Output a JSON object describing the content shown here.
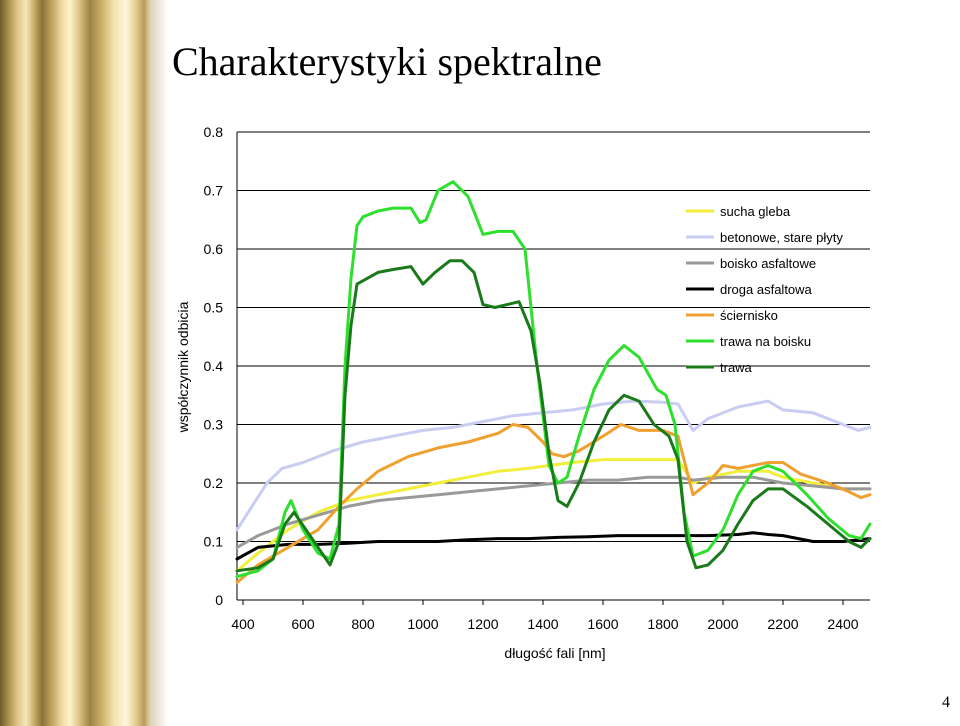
{
  "slide": {
    "title": "Charakterystyki spektralne",
    "number": "4"
  },
  "colors": {
    "background": "#ffffff",
    "band_dark": "#8a7439",
    "band_light": "#f5e7b8",
    "grid": "#000000"
  },
  "chart_data": {
    "type": "line",
    "xlabel": "długość fali [nm]",
    "ylabel": "współczynnik odbicia",
    "xlim": [
      380,
      2490
    ],
    "ylim": [
      0,
      0.8
    ],
    "x_ticks": [
      "400",
      "600",
      "800",
      "1000",
      "1200",
      "1400",
      "1600",
      "1800",
      "2000",
      "2200",
      "2400"
    ],
    "y_ticks": [
      "0",
      "0.1",
      "0.2",
      "0.3",
      "0.4",
      "0.5",
      "0.6",
      "0.7",
      "0.8"
    ],
    "grid": "horizontal",
    "legend_position": "top-right",
    "series": [
      {
        "name": "sucha gleba",
        "color": "#f2ee3a",
        "points": [
          [
            380,
            0.05
          ],
          [
            450,
            0.08
          ],
          [
            550,
            0.12
          ],
          [
            650,
            0.15
          ],
          [
            750,
            0.17
          ],
          [
            850,
            0.18
          ],
          [
            950,
            0.19
          ],
          [
            1050,
            0.2
          ],
          [
            1150,
            0.21
          ],
          [
            1250,
            0.22
          ],
          [
            1350,
            0.225
          ],
          [
            1420,
            0.23
          ],
          [
            1500,
            0.235
          ],
          [
            1600,
            0.24
          ],
          [
            1700,
            0.24
          ],
          [
            1800,
            0.24
          ],
          [
            1850,
            0.24
          ],
          [
            1900,
            0.2
          ],
          [
            1950,
            0.21
          ],
          [
            2050,
            0.22
          ],
          [
            2150,
            0.22
          ],
          [
            2200,
            0.21
          ],
          [
            2300,
            0.2
          ],
          [
            2400,
            0.19
          ],
          [
            2490,
            0.19
          ]
        ]
      },
      {
        "name": "betonowe, stare płyty",
        "color": "#c9cdf2",
        "points": [
          [
            380,
            0.12
          ],
          [
            430,
            0.16
          ],
          [
            480,
            0.2
          ],
          [
            530,
            0.225
          ],
          [
            600,
            0.235
          ],
          [
            700,
            0.255
          ],
          [
            800,
            0.27
          ],
          [
            900,
            0.28
          ],
          [
            1000,
            0.29
          ],
          [
            1100,
            0.295
          ],
          [
            1200,
            0.305
          ],
          [
            1300,
            0.315
          ],
          [
            1400,
            0.32
          ],
          [
            1500,
            0.325
          ],
          [
            1550,
            0.33
          ],
          [
            1600,
            0.335
          ],
          [
            1700,
            0.34
          ],
          [
            1800,
            0.338
          ],
          [
            1850,
            0.335
          ],
          [
            1900,
            0.29
          ],
          [
            1950,
            0.31
          ],
          [
            2050,
            0.33
          ],
          [
            2150,
            0.34
          ],
          [
            2200,
            0.325
          ],
          [
            2300,
            0.32
          ],
          [
            2400,
            0.3
          ],
          [
            2450,
            0.29
          ],
          [
            2490,
            0.295
          ]
        ]
      },
      {
        "name": "boisko asfaltowe",
        "color": "#999999",
        "points": [
          [
            380,
            0.09
          ],
          [
            450,
            0.11
          ],
          [
            550,
            0.13
          ],
          [
            650,
            0.145
          ],
          [
            750,
            0.16
          ],
          [
            850,
            0.17
          ],
          [
            950,
            0.175
          ],
          [
            1050,
            0.18
          ],
          [
            1150,
            0.185
          ],
          [
            1250,
            0.19
          ],
          [
            1350,
            0.195
          ],
          [
            1450,
            0.2
          ],
          [
            1550,
            0.205
          ],
          [
            1650,
            0.205
          ],
          [
            1750,
            0.21
          ],
          [
            1850,
            0.21
          ],
          [
            1900,
            0.205
          ],
          [
            2000,
            0.21
          ],
          [
            2100,
            0.21
          ],
          [
            2200,
            0.2
          ],
          [
            2300,
            0.195
          ],
          [
            2400,
            0.19
          ],
          [
            2490,
            0.19
          ]
        ]
      },
      {
        "name": "droga asfaltowa",
        "color": "#000000",
        "points": [
          [
            380,
            0.07
          ],
          [
            450,
            0.09
          ],
          [
            550,
            0.095
          ],
          [
            650,
            0.095
          ],
          [
            750,
            0.097
          ],
          [
            850,
            0.1
          ],
          [
            950,
            0.1
          ],
          [
            1050,
            0.1
          ],
          [
            1150,
            0.103
          ],
          [
            1250,
            0.105
          ],
          [
            1350,
            0.105
          ],
          [
            1450,
            0.107
          ],
          [
            1550,
            0.108
          ],
          [
            1650,
            0.11
          ],
          [
            1750,
            0.11
          ],
          [
            1850,
            0.11
          ],
          [
            1950,
            0.11
          ],
          [
            2050,
            0.112
          ],
          [
            2100,
            0.115
          ],
          [
            2150,
            0.112
          ],
          [
            2200,
            0.11
          ],
          [
            2300,
            0.1
          ],
          [
            2400,
            0.1
          ],
          [
            2490,
            0.105
          ]
        ]
      },
      {
        "name": "ściernisko",
        "color": "#f0a030",
        "points": [
          [
            380,
            0.03
          ],
          [
            450,
            0.06
          ],
          [
            550,
            0.09
          ],
          [
            650,
            0.12
          ],
          [
            720,
            0.16
          ],
          [
            780,
            0.19
          ],
          [
            850,
            0.22
          ],
          [
            950,
            0.245
          ],
          [
            1050,
            0.26
          ],
          [
            1150,
            0.27
          ],
          [
            1250,
            0.285
          ],
          [
            1300,
            0.3
          ],
          [
            1350,
            0.295
          ],
          [
            1400,
            0.27
          ],
          [
            1430,
            0.25
          ],
          [
            1470,
            0.245
          ],
          [
            1520,
            0.255
          ],
          [
            1600,
            0.28
          ],
          [
            1660,
            0.3
          ],
          [
            1720,
            0.29
          ],
          [
            1800,
            0.29
          ],
          [
            1850,
            0.28
          ],
          [
            1900,
            0.18
          ],
          [
            1950,
            0.2
          ],
          [
            2000,
            0.23
          ],
          [
            2050,
            0.225
          ],
          [
            2150,
            0.235
          ],
          [
            2200,
            0.235
          ],
          [
            2260,
            0.215
          ],
          [
            2350,
            0.2
          ],
          [
            2420,
            0.185
          ],
          [
            2460,
            0.175
          ],
          [
            2490,
            0.18
          ]
        ]
      },
      {
        "name": "trawa na boisku",
        "color": "#2ee02e",
        "points": [
          [
            380,
            0.04
          ],
          [
            450,
            0.05
          ],
          [
            500,
            0.07
          ],
          [
            540,
            0.15
          ],
          [
            560,
            0.17
          ],
          [
            600,
            0.12
          ],
          [
            650,
            0.08
          ],
          [
            690,
            0.07
          ],
          [
            720,
            0.13
          ],
          [
            740,
            0.4
          ],
          [
            760,
            0.55
          ],
          [
            780,
            0.64
          ],
          [
            800,
            0.655
          ],
          [
            850,
            0.665
          ],
          [
            900,
            0.67
          ],
          [
            960,
            0.67
          ],
          [
            990,
            0.645
          ],
          [
            1010,
            0.65
          ],
          [
            1050,
            0.7
          ],
          [
            1100,
            0.715
          ],
          [
            1150,
            0.69
          ],
          [
            1200,
            0.625
          ],
          [
            1250,
            0.63
          ],
          [
            1300,
            0.63
          ],
          [
            1340,
            0.6
          ],
          [
            1380,
            0.4
          ],
          [
            1420,
            0.23
          ],
          [
            1450,
            0.2
          ],
          [
            1480,
            0.21
          ],
          [
            1520,
            0.28
          ],
          [
            1570,
            0.36
          ],
          [
            1620,
            0.41
          ],
          [
            1670,
            0.435
          ],
          [
            1720,
            0.415
          ],
          [
            1780,
            0.36
          ],
          [
            1810,
            0.35
          ],
          [
            1840,
            0.3
          ],
          [
            1870,
            0.15
          ],
          [
            1900,
            0.075
          ],
          [
            1950,
            0.085
          ],
          [
            2000,
            0.12
          ],
          [
            2050,
            0.18
          ],
          [
            2100,
            0.22
          ],
          [
            2150,
            0.23
          ],
          [
            2200,
            0.22
          ],
          [
            2280,
            0.18
          ],
          [
            2350,
            0.14
          ],
          [
            2420,
            0.11
          ],
          [
            2460,
            0.105
          ],
          [
            2490,
            0.13
          ]
        ]
      },
      {
        "name": "trawa",
        "color": "#1a7a1a",
        "points": [
          [
            380,
            0.05
          ],
          [
            450,
            0.055
          ],
          [
            500,
            0.07
          ],
          [
            540,
            0.13
          ],
          [
            570,
            0.15
          ],
          [
            610,
            0.12
          ],
          [
            650,
            0.09
          ],
          [
            690,
            0.06
          ],
          [
            720,
            0.1
          ],
          [
            740,
            0.35
          ],
          [
            760,
            0.47
          ],
          [
            780,
            0.54
          ],
          [
            850,
            0.56
          ],
          [
            900,
            0.565
          ],
          [
            960,
            0.57
          ],
          [
            1000,
            0.54
          ],
          [
            1040,
            0.56
          ],
          [
            1090,
            0.58
          ],
          [
            1130,
            0.58
          ],
          [
            1170,
            0.56
          ],
          [
            1200,
            0.505
          ],
          [
            1240,
            0.5
          ],
          [
            1280,
            0.505
          ],
          [
            1320,
            0.51
          ],
          [
            1360,
            0.46
          ],
          [
            1390,
            0.37
          ],
          [
            1420,
            0.25
          ],
          [
            1450,
            0.17
          ],
          [
            1480,
            0.16
          ],
          [
            1520,
            0.2
          ],
          [
            1570,
            0.27
          ],
          [
            1620,
            0.325
          ],
          [
            1670,
            0.35
          ],
          [
            1720,
            0.34
          ],
          [
            1770,
            0.3
          ],
          [
            1820,
            0.28
          ],
          [
            1850,
            0.24
          ],
          [
            1880,
            0.1
          ],
          [
            1910,
            0.055
          ],
          [
            1950,
            0.06
          ],
          [
            2000,
            0.085
          ],
          [
            2050,
            0.13
          ],
          [
            2100,
            0.17
          ],
          [
            2150,
            0.19
          ],
          [
            2200,
            0.19
          ],
          [
            2280,
            0.16
          ],
          [
            2350,
            0.13
          ],
          [
            2420,
            0.1
          ],
          [
            2460,
            0.09
          ],
          [
            2490,
            0.105
          ]
        ]
      }
    ]
  }
}
